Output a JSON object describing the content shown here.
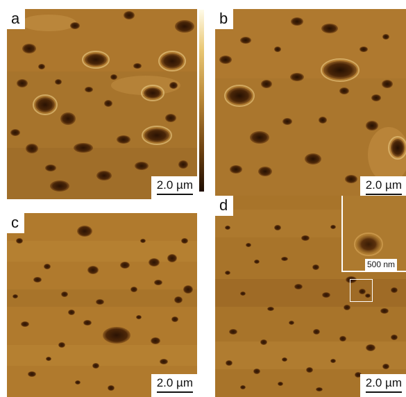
{
  "panels": [
    {
      "label": "a",
      "scalebar": "2.0 µm"
    },
    {
      "label": "b",
      "scalebar": "2.0 µm"
    },
    {
      "label": "c",
      "scalebar": "2.0 µm"
    },
    {
      "label": "d",
      "scalebar": "2.0 µm",
      "inset_scalebar": "500 nm"
    }
  ],
  "colors": {
    "surface_light": "#c8913d",
    "surface_mid": "#a8732a",
    "pit_dark": "#3a1c05",
    "highlight": "#e8c374"
  }
}
